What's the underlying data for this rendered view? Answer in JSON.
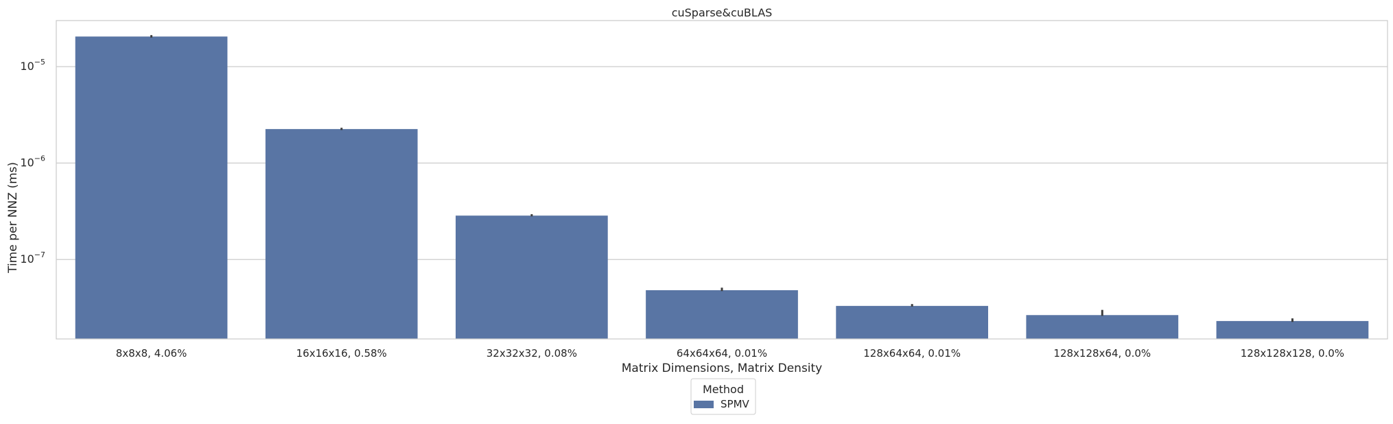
{
  "chart_data": {
    "type": "bar",
    "title": "cuSparse&cuBLAS",
    "xlabel": "Matrix Dimensions, Matrix Density",
    "ylabel": "Time per NNZ (ms)",
    "yscale": "log",
    "ylim": [
      1.5e-08,
      3e-05
    ],
    "yticks": [
      {
        "value": 1e-05,
        "base": "10",
        "exp": "−5"
      },
      {
        "value": 1e-06,
        "base": "10",
        "exp": "−6"
      },
      {
        "value": 1e-07,
        "base": "10",
        "exp": "−7"
      }
    ],
    "grid": true,
    "categories": [
      "8x8x8, 4.06%",
      "16x16x16, 0.58%",
      "32x32x32, 0.08%",
      "64x64x64, 0.01%",
      "128x64x64, 0.01%",
      "128x128x64, 0.0%",
      "128x128x128, 0.0%"
    ],
    "series": [
      {
        "name": "SPMV",
        "color": "#5975a4",
        "values": [
          2.05e-05,
          2.25e-06,
          2.85e-07,
          4.8e-08,
          3.3e-08,
          2.65e-08,
          2.3e-08
        ],
        "err_low": [
          2e-05,
          2.2e-06,
          2.8e-07,
          4.7e-08,
          3.25e-08,
          2.6e-08,
          2.25e-08
        ],
        "err_high": [
          2.12e-05,
          2.32e-06,
          2.95e-07,
          5.1e-08,
          3.45e-08,
          3e-08,
          2.45e-08
        ]
      }
    ],
    "legend": {
      "title": "Method",
      "placement": "bottom-center"
    }
  }
}
